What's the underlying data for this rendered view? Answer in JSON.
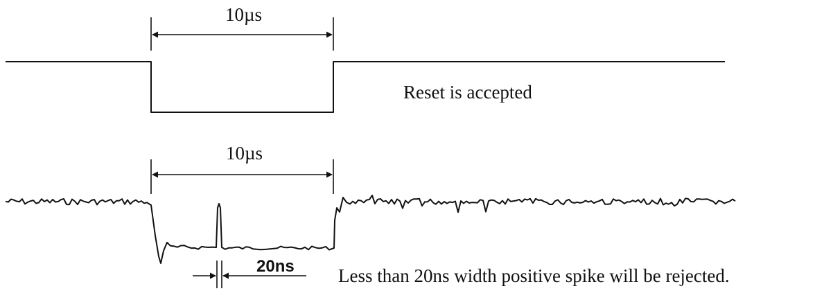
{
  "top_diagram": {
    "duration_label": "10µs",
    "caption": "Reset is accepted"
  },
  "bottom_diagram": {
    "duration_label": "10µs",
    "spike_width_label": "20ns",
    "caption": "Less than 20ns width positive spike will be rejected."
  }
}
